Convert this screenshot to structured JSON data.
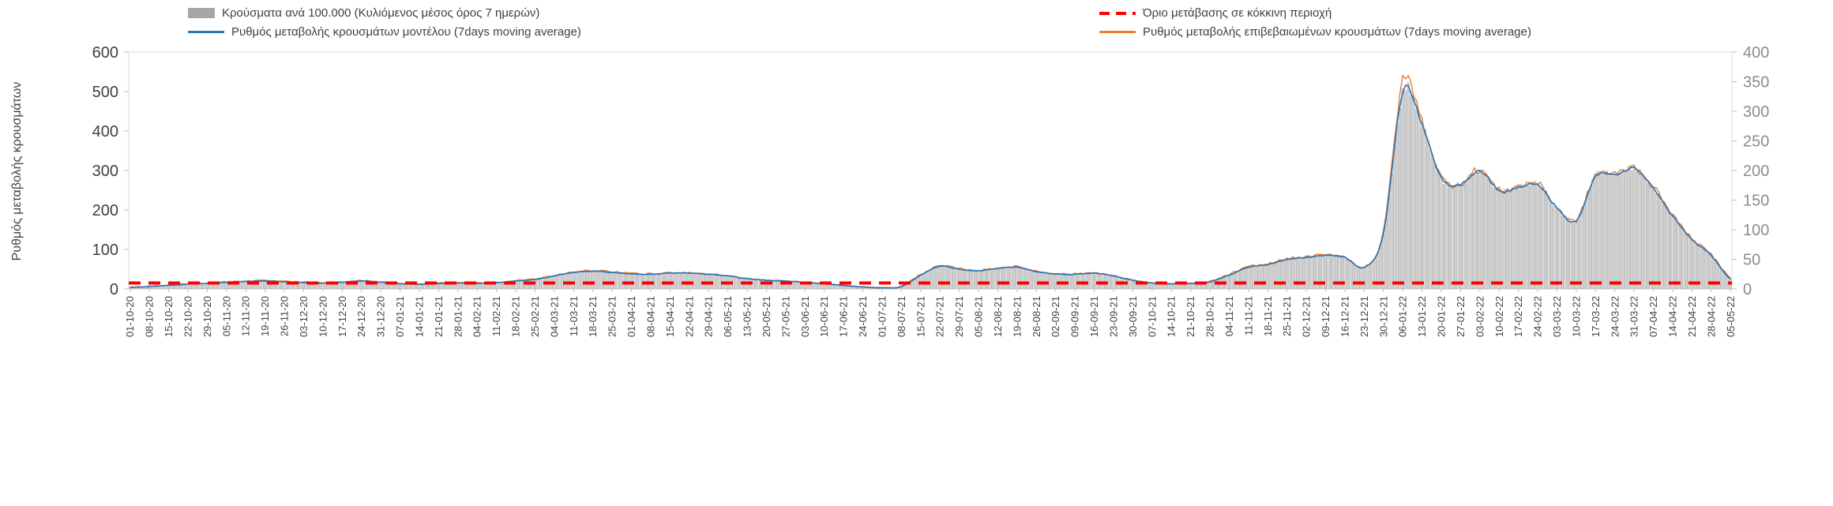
{
  "legend": [
    {
      "label": "Κρούσματα ανά 100.000 (Κυλιόμενος μέσος όρος 7 ημερών)",
      "marker": "bar",
      "color": "#a6a6a6"
    },
    {
      "label": "Όριο μετάβασης σε κόκκινη περιοχή",
      "marker": "dashed",
      "color": "#ff0000"
    },
    {
      "label": "Ρυθμός μεταβολής κρουσμάτων μοντέλου (7days moving average)",
      "marker": "line",
      "color": "#2e75b6"
    },
    {
      "label": "Ρυθμός μεταβολής επιβεβαιωμένων κρουσμάτων (7days moving average)",
      "marker": "line",
      "color": "#ed7d31"
    }
  ],
  "y_axis_title": "Ρυθμός μεταβολής κρουσμάτων",
  "chart_data": {
    "type": "bar",
    "title": "",
    "ylabel": "Ρυθμός μεταβολής κρουσμάτων",
    "grid": "off",
    "legend_position": "top",
    "left_axis": {
      "min": 0,
      "max": 600,
      "ticks": [
        0,
        100,
        200,
        300,
        400,
        500,
        600
      ]
    },
    "right_axis": {
      "min": 0,
      "max": 400,
      "ticks": [
        0,
        50,
        100,
        150,
        200,
        250,
        300,
        350,
        400
      ]
    },
    "threshold": {
      "name": "Όριο μετάβασης σε κόκκινη περιοχή",
      "axis": "right",
      "value": 10,
      "color": "#ff0000",
      "style": "dashed"
    },
    "categories": [
      "01-10-20",
      "08-10-20",
      "15-10-20",
      "22-10-20",
      "29-10-20",
      "05-11-20",
      "12-11-20",
      "19-11-20",
      "26-11-20",
      "03-12-20",
      "10-12-20",
      "17-12-20",
      "24-12-20",
      "31-12-20",
      "07-01-21",
      "14-01-21",
      "21-01-21",
      "28-01-21",
      "04-02-21",
      "11-02-21",
      "18-02-21",
      "25-02-21",
      "04-03-21",
      "11-03-21",
      "18-03-21",
      "25-03-21",
      "01-04-21",
      "08-04-21",
      "15-04-21",
      "22-04-21",
      "29-04-21",
      "06-05-21",
      "13-05-21",
      "20-05-21",
      "27-05-21",
      "03-06-21",
      "10-06-21",
      "17-06-21",
      "24-06-21",
      "01-07-21",
      "08-07-21",
      "15-07-21",
      "22-07-21",
      "29-07-21",
      "05-08-21",
      "12-08-21",
      "19-08-21",
      "26-08-21",
      "02-09-21",
      "09-09-21",
      "16-09-21",
      "23-09-21",
      "30-09-21",
      "07-10-21",
      "14-10-21",
      "21-10-21",
      "28-10-21",
      "04-11-21",
      "11-11-21",
      "18-11-21",
      "25-11-21",
      "02-12-21",
      "09-12-21",
      "16-12-21",
      "23-12-21",
      "30-12-21",
      "06-01-22",
      "13-01-22",
      "20-01-22",
      "27-01-22",
      "03-02-22",
      "10-02-22",
      "17-02-22",
      "24-02-22",
      "03-03-22",
      "10-03-22",
      "17-03-22",
      "24-03-22",
      "31-03-22",
      "07-04-22",
      "14-04-22",
      "21-04-22",
      "28-04-22",
      "05-05-22"
    ],
    "series": [
      {
        "name": "Κρούσματα ανά 100.000 (Κυλιόμενος μέσος όρος 7 ημερών)",
        "type": "bar",
        "axis": "right",
        "color": "#d8d8d8",
        "edge_color": "#9f9f9f",
        "values": [
          3,
          4,
          6,
          8,
          9,
          11,
          13,
          13,
          12,
          11,
          10,
          11,
          13,
          11,
          9,
          8,
          9,
          10,
          9,
          11,
          13,
          16,
          22,
          28,
          30,
          28,
          25,
          25,
          27,
          27,
          25,
          22,
          17,
          15,
          13,
          11,
          9,
          6,
          3,
          2,
          4,
          23,
          38,
          33,
          31,
          35,
          37,
          29,
          25,
          25,
          27,
          22,
          15,
          10,
          9,
          9,
          12,
          23,
          37,
          41,
          50,
          53,
          57,
          53,
          37,
          93,
          333,
          280,
          187,
          177,
          200,
          165,
          172,
          177,
          137,
          115,
          190,
          192,
          203,
          170,
          123,
          83,
          57,
          17
        ]
      },
      {
        "name": "Ρυθμός μεταβολής κρουσμάτων μοντέλου (7days moving average)",
        "type": "line",
        "axis": "left",
        "color": "#2e75b6",
        "values": [
          4,
          6,
          9,
          12,
          14,
          17,
          19,
          20,
          18,
          16,
          15,
          17,
          20,
          17,
          13,
          12,
          14,
          15,
          14,
          16,
          20,
          24,
          33,
          42,
          45,
          42,
          38,
          37,
          40,
          40,
          37,
          33,
          26,
          22,
          20,
          17,
          13,
          9,
          5,
          3,
          6,
          35,
          57,
          50,
          46,
          52,
          55,
          44,
          38,
          37,
          40,
          33,
          22,
          15,
          13,
          14,
          18,
          35,
          55,
          62,
          75,
          80,
          85,
          80,
          55,
          140,
          500,
          420,
          280,
          265,
          300,
          248,
          258,
          265,
          205,
          172,
          285,
          288,
          305,
          255,
          185,
          125,
          85,
          25
        ]
      },
      {
        "name": "Ρυθμός μεταβολής επιβεβαιωμένων κρουσμάτων (7days moving average)",
        "type": "line",
        "axis": "left",
        "color": "#ed7d31",
        "values": [
          5,
          7,
          10,
          13,
          15,
          18,
          20,
          21,
          19,
          17,
          16,
          18,
          21,
          18,
          13,
          12,
          15,
          16,
          15,
          17,
          21,
          25,
          34,
          43,
          46,
          43,
          39,
          38,
          41,
          41,
          38,
          33,
          26,
          22,
          20,
          17,
          13,
          9,
          5,
          3,
          7,
          37,
          58,
          51,
          47,
          53,
          56,
          45,
          39,
          38,
          41,
          33,
          22,
          15,
          13,
          14,
          19,
          37,
          56,
          63,
          76,
          81,
          86,
          81,
          56,
          145,
          525,
          425,
          283,
          267,
          303,
          250,
          260,
          267,
          207,
          174,
          288,
          290,
          308,
          257,
          187,
          127,
          87,
          30
        ]
      }
    ]
  }
}
